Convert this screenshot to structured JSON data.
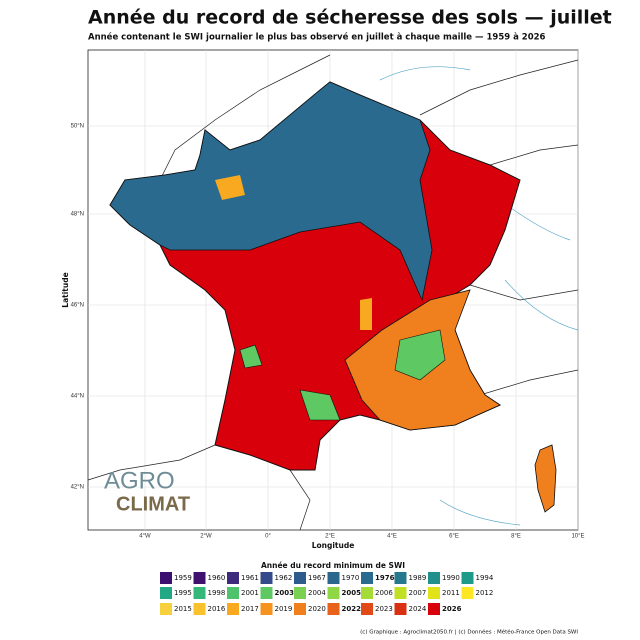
{
  "header": {
    "title": "Année du record de sécheresse des sols — juillet",
    "subtitle": "Année contenant le SWI journalier le plus bas observé en juillet à chaque maille — 1959 à 2026"
  },
  "map": {
    "x_label": "Longitude",
    "y_label": "Latitude",
    "x_ticks": [
      "4°W",
      "2°W",
      "0°",
      "2°E",
      "4°E",
      "6°E",
      "8°E",
      "10°E"
    ],
    "y_ticks": [
      "42°N",
      "44°N",
      "46°N",
      "48°N",
      "50°N"
    ]
  },
  "logo": {
    "line1": "AGRO",
    "line2": "CLIMAT"
  },
  "legend": {
    "title": "Année du record minimum de SWI",
    "rows": [
      [
        {
          "label": "1959",
          "color": "#3b0f6f"
        },
        {
          "label": "1960",
          "color": "#40106f"
        },
        {
          "label": "1961",
          "color": "#3d2a7a"
        },
        {
          "label": "1962",
          "color": "#344a8a"
        },
        {
          "label": "1967",
          "color": "#2f5b8c"
        },
        {
          "label": "1970",
          "color": "#2b678c"
        },
        {
          "label": "1976",
          "color": "#2a6a8e",
          "bold": true
        },
        {
          "label": "1989",
          "color": "#26788e"
        },
        {
          "label": "1990",
          "color": "#21908d"
        },
        {
          "label": "1994",
          "color": "#1f9a8a"
        }
      ],
      [
        {
          "label": "1995",
          "color": "#22a884"
        },
        {
          "label": "1998",
          "color": "#35b779"
        },
        {
          "label": "2001",
          "color": "#4ec36b"
        },
        {
          "label": "2003",
          "color": "#5ec962",
          "bold": true
        },
        {
          "label": "2004",
          "color": "#7ad151"
        },
        {
          "label": "2005",
          "color": "#8fd744",
          "bold": true
        },
        {
          "label": "2006",
          "color": "#a5db36"
        },
        {
          "label": "2007",
          "color": "#c2df23"
        },
        {
          "label": "2011",
          "color": "#dfe318"
        },
        {
          "label": "2012",
          "color": "#fde725"
        }
      ],
      [
        {
          "label": "2015",
          "color": "#f7d13d"
        },
        {
          "label": "2016",
          "color": "#f9c12c"
        },
        {
          "label": "2017",
          "color": "#f8a91f"
        },
        {
          "label": "2019",
          "color": "#f6921e"
        },
        {
          "label": "2020",
          "color": "#f07f1e"
        },
        {
          "label": "2022",
          "color": "#e8621b",
          "bold": true
        },
        {
          "label": "2023",
          "color": "#e14a16"
        },
        {
          "label": "2024",
          "color": "#d93012"
        },
        {
          "label": "2026",
          "color": "#d7000b",
          "bold": true,
          "big": true
        }
      ]
    ]
  },
  "credits": "(c) Graphique : Agroclimat2050.fr | (c) Données : Météo-France Open Data SWI"
}
